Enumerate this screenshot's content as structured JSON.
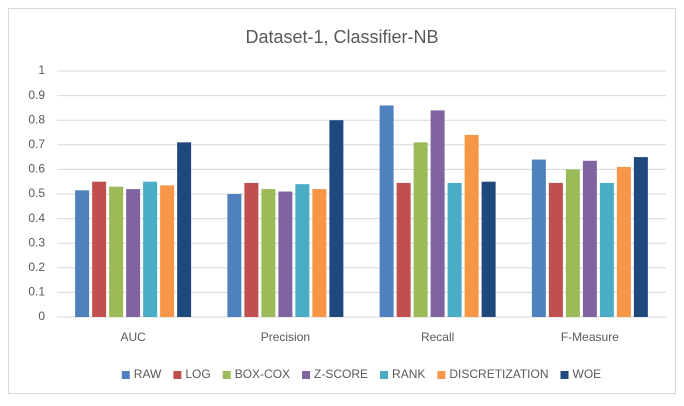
{
  "chart_data": {
    "type": "bar",
    "title": "Dataset-1, Classifier-NB",
    "categories": [
      "AUC",
      "Precision",
      "Recall",
      "F-Measure"
    ],
    "series": [
      {
        "name": "RAW",
        "color": "#4e81bd",
        "values": [
          0.515,
          0.5,
          0.86,
          0.64
        ]
      },
      {
        "name": "LOG",
        "color": "#c0504d",
        "values": [
          0.55,
          0.545,
          0.545,
          0.545
        ]
      },
      {
        "name": "BOX-COX",
        "color": "#9bbb59",
        "values": [
          0.53,
          0.52,
          0.71,
          0.6
        ]
      },
      {
        "name": "Z-SCORE",
        "color": "#8064a2",
        "values": [
          0.52,
          0.51,
          0.84,
          0.635
        ]
      },
      {
        "name": "RANK",
        "color": "#4bacc6",
        "values": [
          0.55,
          0.54,
          0.545,
          0.545
        ]
      },
      {
        "name": "DISCRETIZATION",
        "color": "#f79646",
        "values": [
          0.535,
          0.52,
          0.74,
          0.61
        ]
      },
      {
        "name": "WOE",
        "color": "#1f497d",
        "values": [
          0.71,
          0.8,
          0.55,
          0.65
        ]
      }
    ],
    "ylim": [
      0,
      1
    ],
    "yticks": [
      0,
      0.1,
      0.2,
      0.3,
      0.4,
      0.5,
      0.6,
      0.7,
      0.8,
      0.9,
      1
    ],
    "grid": true,
    "legend": "bottom"
  }
}
